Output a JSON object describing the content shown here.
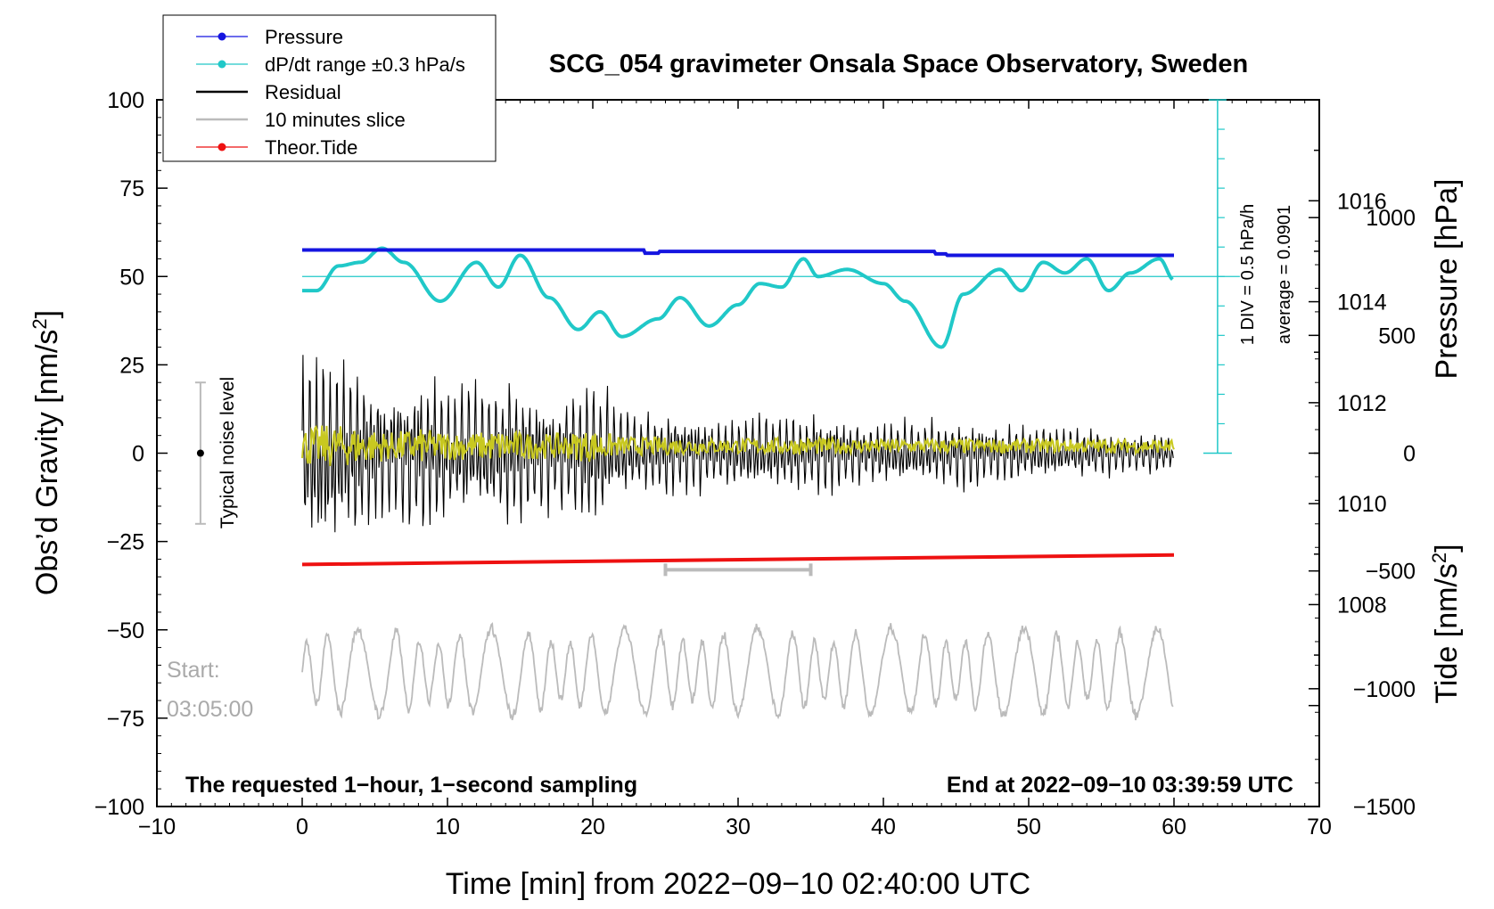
{
  "chart_data": {
    "type": "line",
    "title": "SCG_054 gravimeter Onsala Space Observatory, Sweden",
    "xlabel": "Time [min] from 2022−09−10 02:40:00 UTC",
    "ylabel_left": "Obs’d Gravity [nm/s²]",
    "ylabel_left_text": "Obs’d Gravity [nm/s",
    "ylabel_left_sup": "2",
    "ylabel_left_close": "]",
    "ylabel_pressure": "Pressure [hPa]",
    "ylabel_tide_text": "Tide [nm/s",
    "ylabel_tide_sup": "2",
    "ylabel_tide_close": "]",
    "xlim": [
      -10,
      70
    ],
    "ylim_left": [
      -100,
      100
    ],
    "ylim_pressure": [
      1004,
      1018
    ],
    "ylim_tide": [
      -1500,
      1500
    ],
    "x_ticks": [
      "−10",
      "0",
      "10",
      "20",
      "30",
      "40",
      "50",
      "60",
      "70"
    ],
    "x_tick_values": [
      -10,
      0,
      10,
      20,
      30,
      40,
      50,
      60,
      70
    ],
    "y_left_ticks": [
      "100",
      "75",
      "50",
      "25",
      "0",
      "−25",
      "−50",
      "−75",
      "−100"
    ],
    "y_left_tick_values": [
      100,
      75,
      50,
      25,
      0,
      -25,
      -50,
      -75,
      -100
    ],
    "pressure_ticks": [
      "1016",
      "1014",
      "1012",
      "1010",
      "1008"
    ],
    "pressure_tick_values": [
      1016,
      1014,
      1012,
      1010,
      1008
    ],
    "tide_ticks": [
      "1000",
      "500",
      "0",
      "−500",
      "−1000",
      "−1500"
    ],
    "tide_tick_values": [
      1000,
      500,
      0,
      -500,
      -1000,
      -1500
    ],
    "legend": [
      {
        "label": "Pressure",
        "color": "#1515e0",
        "marker": true
      },
      {
        "label": "dP/dt range ±0.3 hPa/s",
        "color": "#20c8c8",
        "marker": true
      },
      {
        "label": "Residual",
        "color": "#000000",
        "marker": false
      },
      {
        "label": "10 minutes slice",
        "color": "#bbbbbb",
        "marker": false
      },
      {
        "label": "Theor.Tide",
        "color": "#ee1111",
        "marker": true
      }
    ],
    "series": [
      {
        "name": "Pressure",
        "color": "#1515e0",
        "axis": "left_gravity_units",
        "x": [
          0,
          23.5,
          23.6,
          24.5,
          24.6,
          43.5,
          43.6,
          44.3,
          44.4,
          60
        ],
        "values": [
          57.5,
          57.5,
          56.6,
          56.6,
          57.1,
          57.1,
          56.4,
          56.4,
          56.0,
          56.0
        ]
      },
      {
        "name": "dP/dt",
        "color": "#20c8c8",
        "axis": "left_gravity_units",
        "x": [
          0,
          1,
          2.5,
          4,
          5.5,
          7,
          9.5,
          12,
          13.5,
          15,
          17,
          19,
          20.5,
          22,
          24.5,
          26,
          28,
          30,
          31.5,
          33,
          34.5,
          35.5,
          37.5,
          40,
          41.5,
          44,
          45.5,
          48,
          49.5,
          51,
          52.5,
          54,
          55.5,
          57,
          59,
          60
        ],
        "values": [
          46,
          46,
          53,
          54,
          58,
          54,
          43,
          54,
          47,
          56,
          44,
          35,
          40,
          33,
          38,
          44,
          36,
          42,
          48,
          47,
          55,
          50,
          52,
          48,
          43,
          30,
          45,
          52,
          46,
          54,
          51,
          55,
          46,
          51,
          55,
          49
        ]
      },
      {
        "name": "Theor.Tide",
        "color": "#ee1111",
        "axis": "left_gravity_units",
        "x": [
          0,
          60
        ],
        "values": [
          -31.5,
          -28.8
        ]
      }
    ],
    "residual_envelope": {
      "x": [
        0,
        2,
        4,
        6,
        8,
        10,
        12,
        14,
        16,
        18,
        20,
        22,
        25,
        30,
        35,
        40,
        45,
        50,
        55,
        60
      ],
      "amplitude": [
        30,
        34,
        30,
        22,
        28,
        22,
        22,
        26,
        20,
        20,
        26,
        15,
        14,
        12,
        14,
        10,
        12,
        9,
        8,
        6
      ]
    },
    "ten_minute_slice": {
      "start": 25,
      "end": 35,
      "y": -33
    },
    "noise_level": {
      "x": -7,
      "center": 0,
      "range": [
        -20,
        20
      ]
    },
    "pressure_scale_bar": {
      "x": 63,
      "from": 0,
      "to": 100,
      "mid": 50
    },
    "annotations": {
      "noise_label": "Typical noise level",
      "start_label": "Start:",
      "start_time": "03:05:00",
      "sampling_note": "The requested 1−hour, 1−second sampling",
      "end_note": "End at 2022−09−10 03:39:59 UTC",
      "div_label": "1 DIV = 0.5 hPa/h",
      "average_label": "average = 0.0901"
    }
  }
}
